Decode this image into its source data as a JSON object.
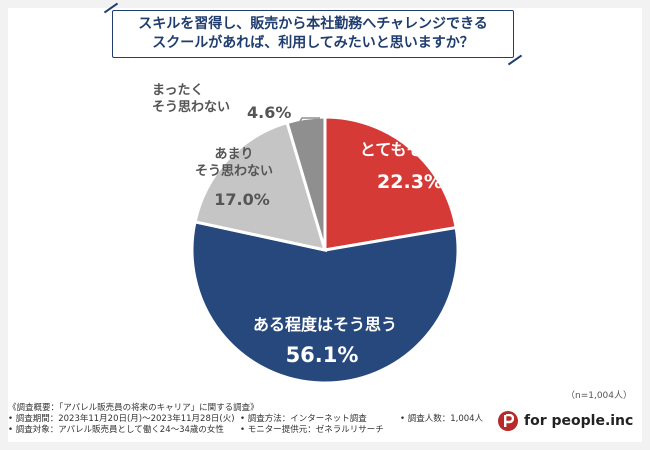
{
  "title_lines": [
    "スキルを習得し、販売から本社勤務へチャレンジできる",
    "スクールがあれば、利用してみたいと思いますか？"
  ],
  "chart_data": {
    "type": "pie",
    "title": "スキルを習得し、販売から本社勤務へチャレンジできるスクールがあれば、利用してみたいと思いますか？",
    "slices": [
      {
        "label": "とてもそう思う",
        "value": 22.3,
        "display": "22.3%",
        "color": "#d63a37"
      },
      {
        "label": "ある程度はそう思う",
        "value": 56.1,
        "display": "56.1%",
        "color": "#27487c"
      },
      {
        "label": "あまりそう思わない",
        "value": 17.0,
        "display": "17.0%",
        "color": "#c5c5c5"
      },
      {
        "label": "まったくそう思わない",
        "value": 4.6,
        "display": "4.6%",
        "color": "#8f8f8f"
      }
    ]
  },
  "sample_size": "（n=1,004人）",
  "footer": {
    "summary": "《調査概要：「アパレル販売員の将来のキャリア」に関する調査》",
    "items": [
      "• 調査期間：2023年11月20日(月)〜2023年11月28日(火)",
      "• 調査方法：インターネット調査",
      "• 調査人数：1,004人",
      "• 調査対象：アパレル販売員として働く24〜34歳の女性",
      "• モニター提供元：ゼネラルリサーチ",
      ""
    ]
  },
  "brand": {
    "name": "for people.inc",
    "mark": "p",
    "color": "#b62a2a"
  }
}
